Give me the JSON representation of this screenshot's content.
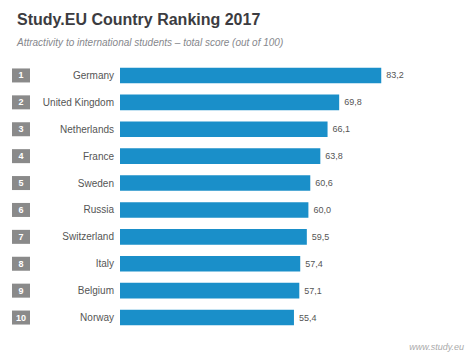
{
  "chart_data": {
    "type": "bar",
    "orientation": "horizontal",
    "title": "Study.EU Country Ranking 2017",
    "subtitle": "Attractivity to international students – total score (out of 100)",
    "annotations": [
      "www.study.eu"
    ],
    "categories": [
      "Germany",
      "United Kingdom",
      "Netherlands",
      "France",
      "Sweden",
      "Russia",
      "Switzerland",
      "Italy",
      "Belgium",
      "Norway"
    ],
    "ranks": [
      "1",
      "2",
      "3",
      "4",
      "5",
      "6",
      "7",
      "8",
      "9",
      "10"
    ],
    "values": [
      83.2,
      69.8,
      66.1,
      63.8,
      60.6,
      60.0,
      59.5,
      57.4,
      57.1,
      55.4
    ],
    "value_labels": [
      "83,2",
      "69,8",
      "66,1",
      "63,8",
      "60,6",
      "60,0",
      "59,5",
      "57,4",
      "57,1",
      "55,4"
    ],
    "color": "#1a8fc9",
    "xlim": [
      0,
      100
    ],
    "grid": false,
    "data_labels": true,
    "tick_labels": "y"
  }
}
